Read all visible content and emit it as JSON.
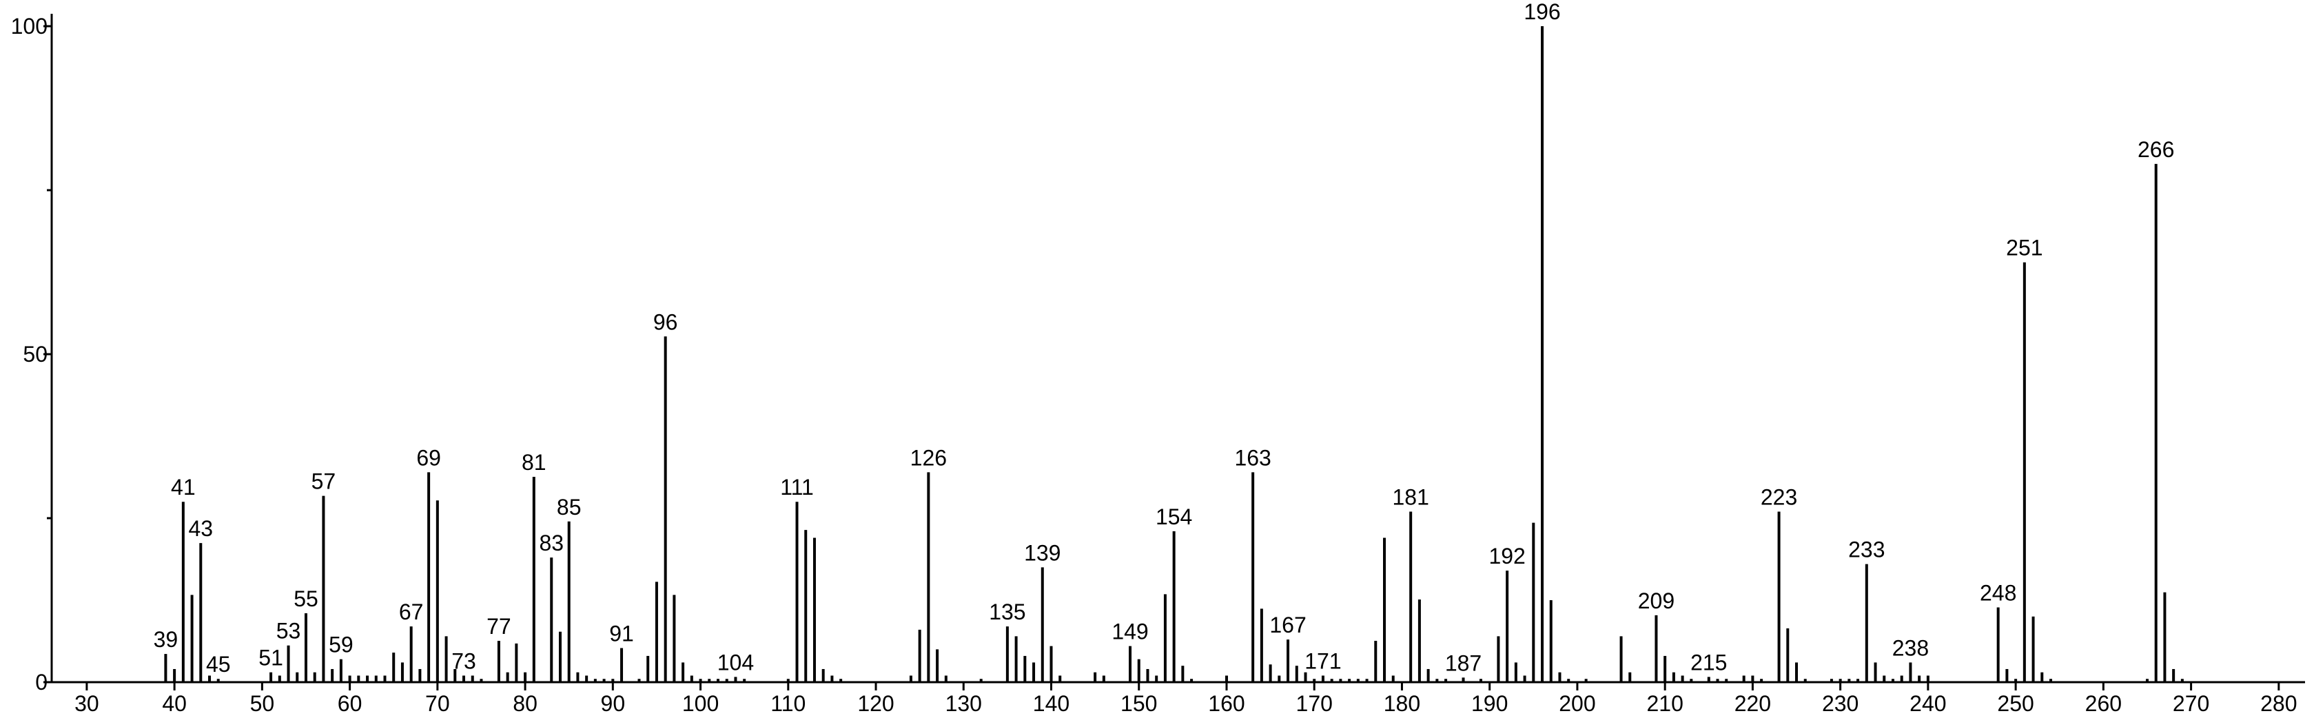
{
  "chart_data": {
    "type": "bar",
    "color": "#000000",
    "x": [
      39,
      40,
      41,
      42,
      43,
      44,
      45,
      51,
      52,
      53,
      54,
      55,
      56,
      57,
      58,
      59,
      60,
      61,
      62,
      63,
      64,
      65,
      66,
      67,
      68,
      69,
      70,
      71,
      72,
      73,
      74,
      75,
      77,
      78,
      79,
      80,
      81,
      83,
      84,
      85,
      86,
      87,
      88,
      89,
      90,
      91,
      93,
      94,
      95,
      96,
      97,
      98,
      99,
      100,
      101,
      102,
      103,
      104,
      105,
      110,
      111,
      112,
      113,
      114,
      115,
      116,
      124,
      125,
      126,
      127,
      128,
      132,
      135,
      136,
      137,
      138,
      139,
      140,
      141,
      145,
      146,
      149,
      150,
      151,
      152,
      153,
      154,
      155,
      156,
      160,
      163,
      164,
      165,
      166,
      167,
      168,
      169,
      170,
      171,
      172,
      173,
      174,
      175,
      176,
      177,
      178,
      179,
      181,
      182,
      183,
      184,
      185,
      187,
      189,
      191,
      192,
      193,
      194,
      195,
      196,
      197,
      198,
      199,
      201,
      205,
      206,
      209,
      210,
      211,
      212,
      213,
      215,
      216,
      217,
      219,
      220,
      221,
      223,
      224,
      225,
      226,
      229,
      230,
      231,
      232,
      233,
      234,
      235,
      236,
      237,
      238,
      239,
      240,
      248,
      249,
      250,
      251,
      252,
      253,
      254,
      265,
      266,
      267,
      268,
      269
    ],
    "values": [
      4.3,
      2,
      27.5,
      13.3,
      21.2,
      1,
      0.5,
      1.5,
      1,
      5.6,
      1.5,
      10.5,
      1.5,
      28.4,
      2,
      3.5,
      1,
      1,
      1,
      1,
      1,
      4.5,
      3,
      8.5,
      2,
      32,
      27.7,
      7,
      2,
      1,
      1,
      0.5,
      6.3,
      1.5,
      5.9,
      1.5,
      31.3,
      19,
      7.7,
      24.5,
      1.5,
      1,
      0.5,
      0.5,
      0.5,
      5.2,
      0.5,
      4,
      15.3,
      52.7,
      13.3,
      3,
      1,
      0.5,
      0.5,
      0.5,
      0.5,
      0.8,
      0.5,
      0.5,
      27.5,
      23.2,
      22,
      2,
      1,
      0.5,
      1,
      8,
      32,
      5,
      1,
      0.5,
      8.5,
      7,
      4,
      3,
      17.5,
      5.5,
      1,
      1.5,
      1,
      5.5,
      3.5,
      2,
      1,
      13.4,
      23,
      2.5,
      0.5,
      1,
      32,
      11.2,
      2.7,
      1,
      6.5,
      2.5,
      1.5,
      0.5,
      1,
      0.5,
      0.5,
      0.5,
      0.5,
      0.5,
      6.3,
      22,
      1,
      26,
      12.6,
      2,
      0.5,
      0.5,
      0.7,
      0.5,
      7,
      17,
      3,
      1,
      24.3,
      100,
      12.5,
      1.5,
      0.5,
      0.5,
      7,
      1.5,
      10.2,
      4,
      1.5,
      1,
      0.5,
      0.8,
      0.5,
      0.5,
      1,
      1,
      0.5,
      26,
      8.2,
      3,
      0.5,
      0.5,
      0.5,
      0.5,
      0.5,
      18,
      3,
      1,
      0.5,
      1,
      3,
      1,
      1,
      11.4,
      2,
      0.5,
      64,
      10,
      1.5,
      0.5,
      0.5,
      79,
      13.7,
      2,
      0.5
    ],
    "peak_labels": [
      "39",
      null,
      "41",
      null,
      "43",
      null,
      "45",
      "51",
      null,
      "53",
      null,
      "55",
      null,
      "57",
      null,
      "59",
      null,
      null,
      null,
      null,
      null,
      null,
      null,
      "67",
      null,
      "69",
      null,
      null,
      null,
      "73",
      null,
      null,
      "77",
      null,
      null,
      null,
      "81",
      "83",
      null,
      "85",
      null,
      null,
      null,
      null,
      null,
      "91",
      null,
      null,
      null,
      "96",
      null,
      null,
      null,
      null,
      null,
      null,
      null,
      "104",
      null,
      null,
      "111",
      null,
      null,
      null,
      null,
      null,
      null,
      null,
      "126",
      null,
      null,
      null,
      "135",
      null,
      null,
      null,
      "139",
      null,
      null,
      null,
      null,
      "149",
      null,
      null,
      null,
      null,
      "154",
      null,
      null,
      null,
      "163",
      null,
      null,
      null,
      "167",
      null,
      null,
      null,
      "171",
      null,
      null,
      null,
      null,
      null,
      null,
      null,
      null,
      "181",
      null,
      null,
      null,
      null,
      "187",
      null,
      null,
      "192",
      null,
      null,
      null,
      "196",
      null,
      null,
      null,
      null,
      null,
      null,
      "209",
      null,
      null,
      null,
      null,
      "215",
      null,
      null,
      null,
      null,
      null,
      "223",
      null,
      null,
      null,
      null,
      null,
      null,
      null,
      "233",
      null,
      null,
      null,
      null,
      "238",
      null,
      null,
      "248",
      null,
      null,
      "251",
      null,
      null,
      null,
      null,
      "266",
      null,
      null,
      null
    ],
    "xlim": [
      26,
      283
    ],
    "xticks": [
      30,
      40,
      50,
      60,
      70,
      80,
      90,
      100,
      110,
      120,
      130,
      140,
      150,
      160,
      170,
      180,
      190,
      200,
      210,
      220,
      230,
      240,
      250,
      260,
      270,
      280
    ],
    "ylim": [
      0,
      100
    ],
    "yticks": [
      0,
      50,
      100
    ],
    "yminor_ticks": [
      25,
      75
    ]
  }
}
